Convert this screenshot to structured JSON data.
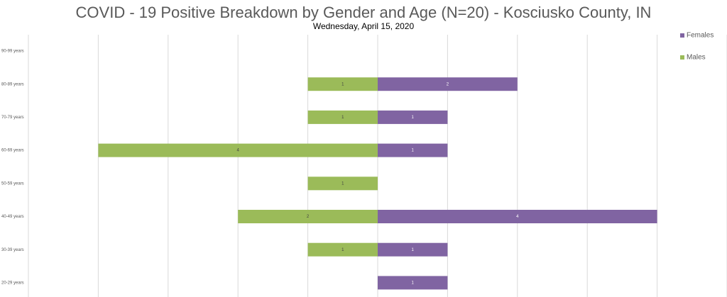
{
  "chart_data": {
    "type": "bar",
    "orientation": "horizontal",
    "title": "COVID - 19 Positive Breakdown by Gender and Age (N=20) - Kosciusko County, IN",
    "subtitle": "Wednesday, April 15, 2020",
    "categories": [
      "90-99 years",
      "80-89 years",
      "70-79 years",
      "60-69 years",
      "50-59 years",
      "40-49 years",
      "30-39 years",
      "20-29 years"
    ],
    "series": [
      {
        "name": "Females",
        "color": "#8064a2",
        "values": [
          null,
          2,
          1,
          1,
          null,
          4,
          1,
          1
        ]
      },
      {
        "name": "Males",
        "color": "#9bbb59",
        "values": [
          null,
          1,
          1,
          4,
          1,
          2,
          1,
          null
        ]
      }
    ],
    "xlim": [
      -5,
      5
    ],
    "xticks": [
      -5,
      -4,
      -3,
      -2,
      -1,
      0,
      1,
      2,
      3,
      4,
      5
    ],
    "grid": true,
    "legend": "right"
  }
}
